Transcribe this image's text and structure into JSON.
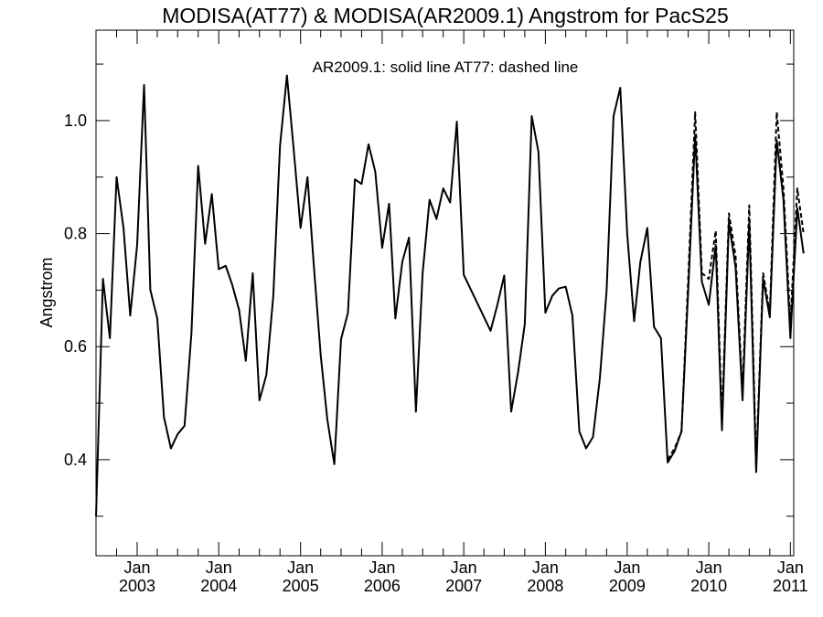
{
  "chart_data": {
    "type": "line",
    "title": "MODISA(AT77) & MODISA(AR2009.1)  Angstrom for PacS25",
    "annotation": "AR2009.1: solid line   AT77: dashed line",
    "xlabel": "",
    "ylabel": "Angstrom",
    "xlim": [
      "2002-07-01",
      "2011-01-16"
    ],
    "ylim": [
      0.23,
      1.16
    ],
    "y_ticks": [
      0.4,
      0.6,
      0.8,
      1.0
    ],
    "y_tick_labels": [
      "0.4",
      "0.6",
      "0.8",
      "1.0"
    ],
    "x_ticks": [
      {
        "date": "2003-01-01",
        "month_label": "Jan",
        "year_label": "2003"
      },
      {
        "date": "2004-01-01",
        "month_label": "Jan",
        "year_label": "2004"
      },
      {
        "date": "2005-01-01",
        "month_label": "Jan",
        "year_label": "2005"
      },
      {
        "date": "2006-01-01",
        "month_label": "Jan",
        "year_label": "2006"
      },
      {
        "date": "2007-01-01",
        "month_label": "Jan",
        "year_label": "2007"
      },
      {
        "date": "2008-01-01",
        "month_label": "Jan",
        "year_label": "2008"
      },
      {
        "date": "2009-01-01",
        "month_label": "Jan",
        "year_label": "2009"
      },
      {
        "date": "2010-01-01",
        "month_label": "Jan",
        "year_label": "2010"
      },
      {
        "date": "2011-01-01",
        "month_label": "Jan",
        "year_label": "2011"
      }
    ],
    "grid": false,
    "series": [
      {
        "name": "AR2009.1",
        "style": "solid",
        "color": "#000000",
        "points": [
          [
            "2002-07-01",
            0.3
          ],
          [
            "2002-08-01",
            0.72
          ],
          [
            "2002-09-01",
            0.615
          ],
          [
            "2002-10-01",
            0.9
          ],
          [
            "2002-11-01",
            0.81
          ],
          [
            "2002-12-01",
            0.655
          ],
          [
            "2003-01-01",
            0.78
          ],
          [
            "2003-02-01",
            1.063
          ],
          [
            "2003-03-01",
            0.7
          ],
          [
            "2003-04-01",
            0.65
          ],
          [
            "2003-05-01",
            0.475
          ],
          [
            "2003-06-01",
            0.42
          ],
          [
            "2003-07-01",
            0.445
          ],
          [
            "2003-08-01",
            0.46
          ],
          [
            "2003-09-01",
            0.625
          ],
          [
            "2003-10-01",
            0.92
          ],
          [
            "2003-11-01",
            0.782
          ],
          [
            "2003-12-01",
            0.87
          ],
          [
            "2004-01-01",
            0.737
          ],
          [
            "2004-02-01",
            0.743
          ],
          [
            "2004-03-01",
            0.71
          ],
          [
            "2004-04-01",
            0.665
          ],
          [
            "2004-05-01",
            0.575
          ],
          [
            "2004-06-01",
            0.73
          ],
          [
            "2004-07-01",
            0.505
          ],
          [
            "2004-08-01",
            0.55
          ],
          [
            "2004-09-01",
            0.69
          ],
          [
            "2004-10-01",
            0.955
          ],
          [
            "2004-11-01",
            1.08
          ],
          [
            "2004-12-01",
            0.95
          ],
          [
            "2005-01-01",
            0.81
          ],
          [
            "2005-02-01",
            0.9
          ],
          [
            "2005-03-01",
            0.745
          ],
          [
            "2005-04-01",
            0.585
          ],
          [
            "2005-05-01",
            0.47
          ],
          [
            "2005-06-01",
            0.392
          ],
          [
            "2005-07-01",
            0.613
          ],
          [
            "2005-08-01",
            0.66
          ],
          [
            "2005-09-01",
            0.896
          ],
          [
            "2005-10-01",
            0.888
          ],
          [
            "2005-11-01",
            0.958
          ],
          [
            "2005-12-01",
            0.91
          ],
          [
            "2006-01-01",
            0.775
          ],
          [
            "2006-02-01",
            0.853
          ],
          [
            "2006-03-01",
            0.65
          ],
          [
            "2006-04-01",
            0.75
          ],
          [
            "2006-05-01",
            0.793
          ],
          [
            "2006-06-01",
            0.485
          ],
          [
            "2006-07-01",
            0.73
          ],
          [
            "2006-08-01",
            0.86
          ],
          [
            "2006-09-01",
            0.826
          ],
          [
            "2006-10-01",
            0.88
          ],
          [
            "2006-11-01",
            0.855
          ],
          [
            "2006-12-01",
            0.998
          ],
          [
            "2007-01-01",
            0.727
          ],
          [
            "2007-05-01",
            0.628
          ],
          [
            "2007-06-01",
            0.675
          ],
          [
            "2007-07-01",
            0.726
          ],
          [
            "2007-08-01",
            0.485
          ],
          [
            "2007-09-01",
            0.555
          ],
          [
            "2007-10-01",
            0.64
          ],
          [
            "2007-11-01",
            1.008
          ],
          [
            "2007-12-01",
            0.945
          ],
          [
            "2008-01-01",
            0.66
          ],
          [
            "2008-02-01",
            0.69
          ],
          [
            "2008-03-01",
            0.703
          ],
          [
            "2008-04-01",
            0.706
          ],
          [
            "2008-05-01",
            0.655
          ],
          [
            "2008-06-01",
            0.45
          ],
          [
            "2008-07-01",
            0.42
          ],
          [
            "2008-08-01",
            0.44
          ],
          [
            "2008-09-01",
            0.545
          ],
          [
            "2008-10-01",
            0.7
          ],
          [
            "2008-11-01",
            1.008
          ],
          [
            "2008-12-01",
            1.058
          ],
          [
            "2009-01-01",
            0.8
          ],
          [
            "2009-02-01",
            0.645
          ],
          [
            "2009-03-01",
            0.75
          ],
          [
            "2009-04-01",
            0.81
          ],
          [
            "2009-05-01",
            0.635
          ],
          [
            "2009-06-01",
            0.615
          ],
          [
            "2009-07-01",
            0.395
          ],
          [
            "2009-08-01",
            0.415
          ],
          [
            "2009-09-01",
            0.45
          ],
          [
            "2009-10-01",
            0.7
          ],
          [
            "2009-11-01",
            0.975
          ],
          [
            "2009-12-01",
            0.715
          ],
          [
            "2010-01-01",
            0.674
          ],
          [
            "2010-02-01",
            0.78
          ],
          [
            "2010-03-01",
            0.452
          ],
          [
            "2010-04-01",
            0.82
          ],
          [
            "2010-05-01",
            0.74
          ],
          [
            "2010-06-01",
            0.505
          ],
          [
            "2010-07-01",
            0.82
          ],
          [
            "2010-08-01",
            0.378
          ],
          [
            "2010-09-01",
            0.72
          ],
          [
            "2010-10-01",
            0.652
          ],
          [
            "2010-11-01",
            0.965
          ],
          [
            "2010-12-01",
            0.86
          ],
          [
            "2011-01-01",
            0.615
          ],
          [
            "2011-02-01",
            0.845
          ],
          [
            "2011-03-01",
            0.765
          ]
        ]
      },
      {
        "name": "AT77",
        "style": "dashed",
        "color": "#000000",
        "points": [
          [
            "2009-07-01",
            0.4
          ],
          [
            "2009-08-01",
            0.42
          ],
          [
            "2009-09-01",
            0.45
          ],
          [
            "2009-10-01",
            0.72
          ],
          [
            "2009-11-01",
            1.015
          ],
          [
            "2009-12-01",
            0.73
          ],
          [
            "2010-01-01",
            0.72
          ],
          [
            "2010-02-01",
            0.805
          ],
          [
            "2010-03-01",
            0.47
          ],
          [
            "2010-04-01",
            0.836
          ],
          [
            "2010-05-01",
            0.76
          ],
          [
            "2010-06-01",
            0.52
          ],
          [
            "2010-07-01",
            0.85
          ],
          [
            "2010-08-01",
            0.39
          ],
          [
            "2010-09-01",
            0.73
          ],
          [
            "2010-10-01",
            0.66
          ],
          [
            "2010-11-01",
            1.015
          ],
          [
            "2010-12-01",
            0.88
          ],
          [
            "2011-01-01",
            0.64
          ],
          [
            "2011-02-01",
            0.88
          ],
          [
            "2011-03-01",
            0.8
          ]
        ]
      }
    ]
  }
}
